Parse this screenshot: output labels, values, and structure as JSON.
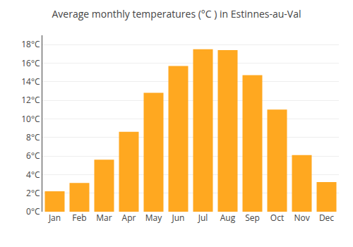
{
  "chart_data": {
    "type": "bar",
    "title": "Average monthly temperatures (°C ) in Estinnes-au-Val",
    "categories": [
      "Jan",
      "Feb",
      "Mar",
      "Apr",
      "May",
      "Jun",
      "Jul",
      "Aug",
      "Sep",
      "Oct",
      "Nov",
      "Dec"
    ],
    "values": [
      2.2,
      3.1,
      5.6,
      8.6,
      12.8,
      15.7,
      17.5,
      17.4,
      14.7,
      11.0,
      6.1,
      3.2
    ],
    "color": "#FFA820",
    "ylim": [
      0,
      19
    ],
    "yticks": [
      {
        "value": 0,
        "label": "0°C"
      },
      {
        "value": 2,
        "label": "2°C"
      },
      {
        "value": 4,
        "label": "4°C"
      },
      {
        "value": 6,
        "label": "6°C"
      },
      {
        "value": 8,
        "label": "8°C"
      },
      {
        "value": 10,
        "label": "10°C"
      },
      {
        "value": 12,
        "label": "12°C"
      },
      {
        "value": 14,
        "label": "14°C"
      },
      {
        "value": 16,
        "label": "16°C"
      },
      {
        "value": 18,
        "label": "18°C"
      }
    ],
    "grid": true
  }
}
